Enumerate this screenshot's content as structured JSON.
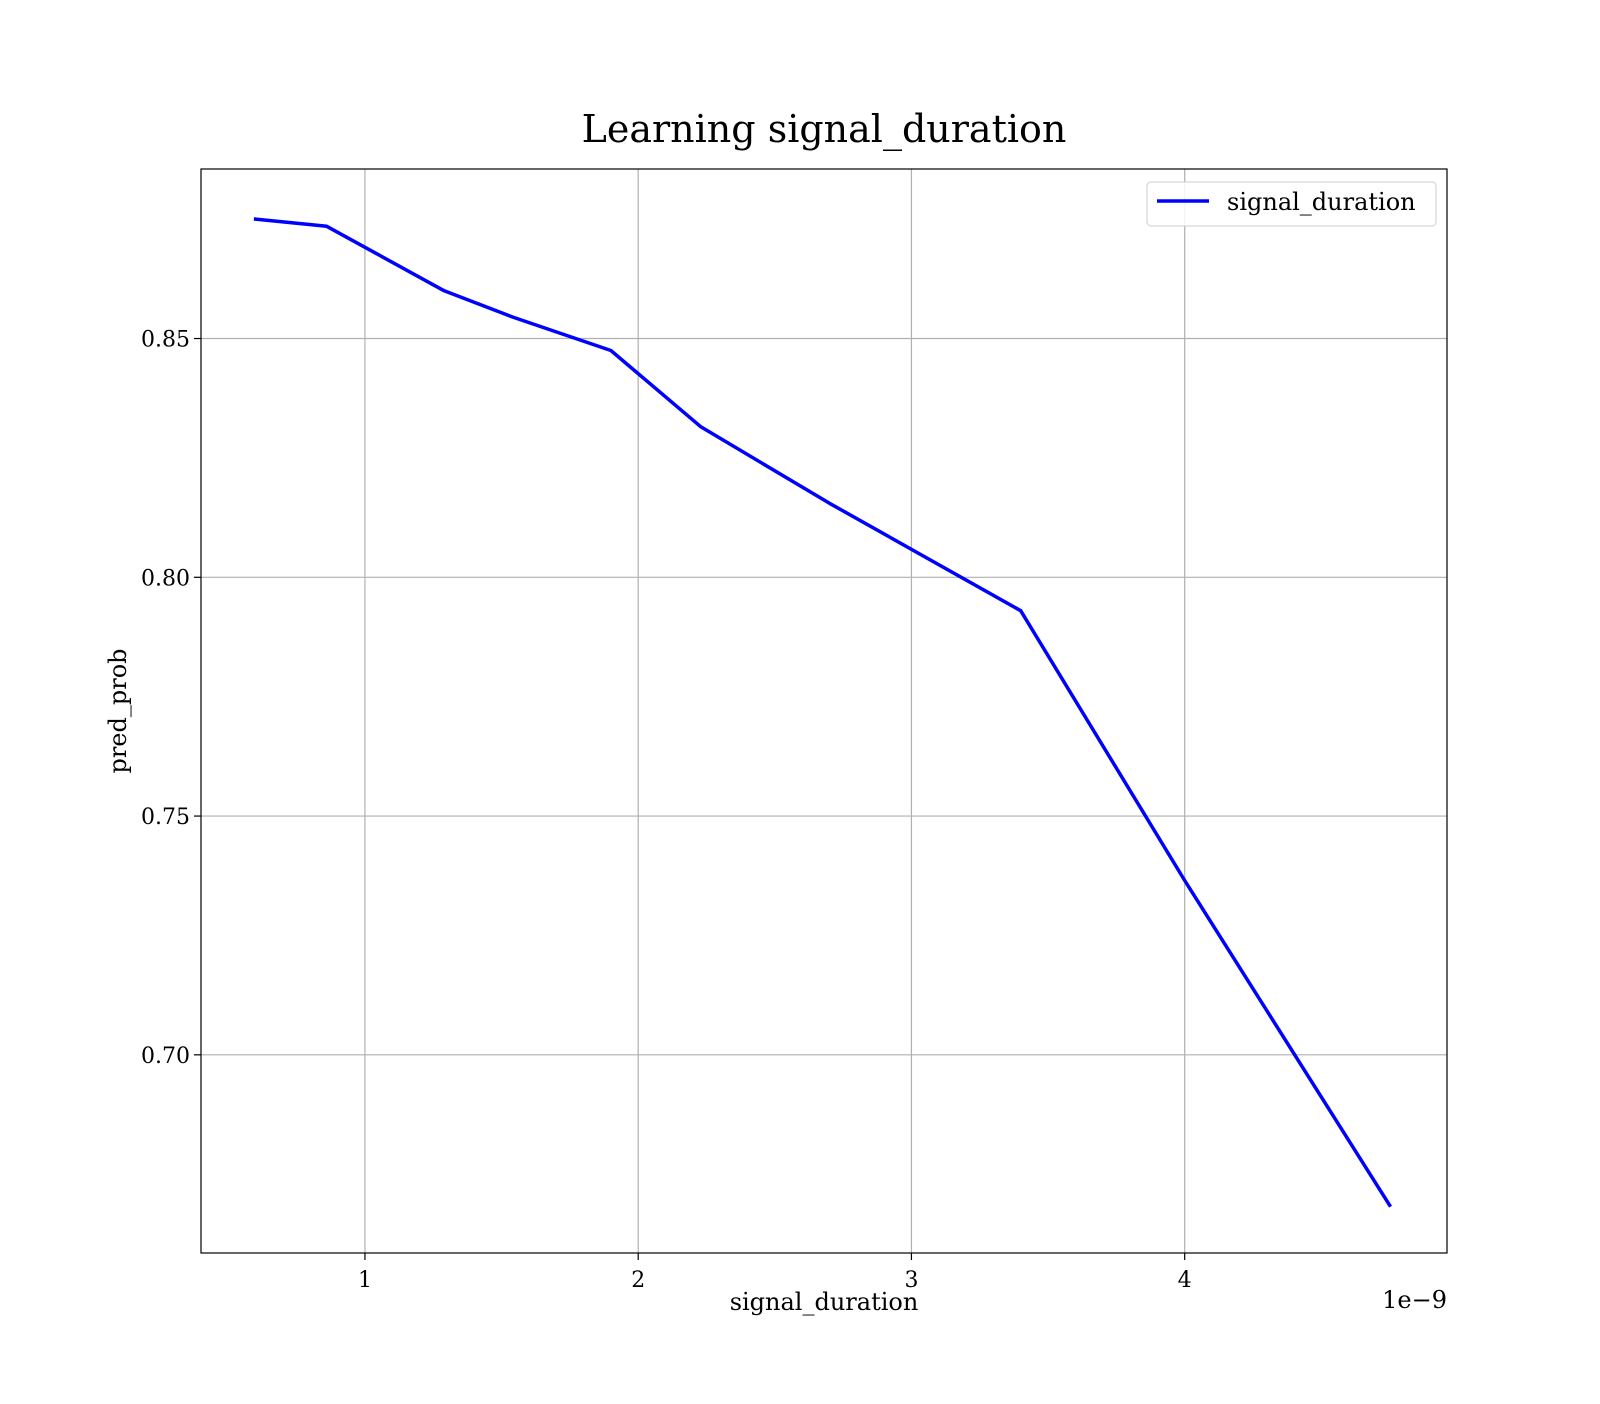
{
  "chart_data": {
    "type": "line",
    "title": "Learning signal_duration",
    "xlabel": "signal_duration",
    "ylabel": "pred_prob",
    "x_offset_label": "1e−9",
    "x_scale_exponent": -9,
    "xlim": [
      0.4,
      4.96
    ],
    "ylim": [
      0.6585,
      0.8855
    ],
    "x_ticks": [
      1,
      2,
      3,
      4
    ],
    "x_tick_labels": [
      "1",
      "2",
      "3",
      "4"
    ],
    "y_ticks": [
      0.7,
      0.75,
      0.8,
      0.85
    ],
    "y_tick_labels": [
      "0.70",
      "0.75",
      "0.80",
      "0.85"
    ],
    "grid": true,
    "legend": {
      "position": "top-right"
    },
    "series": [
      {
        "name": "signal_duration",
        "color": "#0000ff",
        "x": [
          0.6,
          0.86,
          1.29,
          1.54,
          1.9,
          2.23,
          2.7,
          3.4,
          4.0,
          4.75
        ],
        "y": [
          0.875,
          0.8735,
          0.86,
          0.8545,
          0.8475,
          0.8315,
          0.8155,
          0.793,
          0.7365,
          0.6685
        ]
      }
    ]
  }
}
